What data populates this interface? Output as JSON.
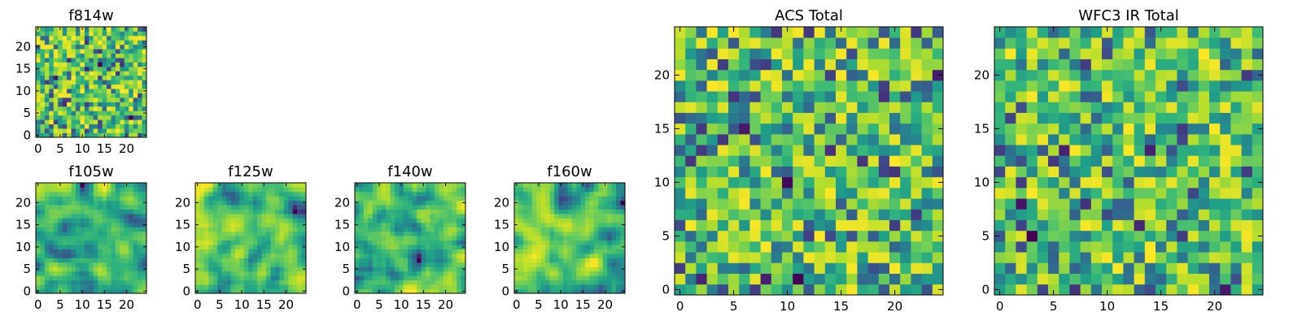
{
  "chart_data": [
    {
      "type": "heatmap",
      "title": "f814w",
      "grid_size": 25,
      "xticks": [
        0,
        5,
        10,
        15,
        20
      ],
      "yticks": [
        0,
        5,
        10,
        15,
        20
      ],
      "xlim": [
        -0.5,
        24.5
      ],
      "ylim": [
        -0.5,
        24.5
      ],
      "colormap": "viridis",
      "texture_seed": 11,
      "smoothing": 0
    },
    {
      "type": "heatmap",
      "title": "f105w",
      "grid_size": 25,
      "xticks": [
        0,
        5,
        10,
        15,
        20
      ],
      "yticks": [
        0,
        5,
        10,
        15,
        20
      ],
      "xlim": [
        -0.5,
        24.5
      ],
      "ylim": [
        -0.5,
        24.5
      ],
      "colormap": "viridis",
      "texture_seed": 23,
      "smoothing": 2
    },
    {
      "type": "heatmap",
      "title": "f125w",
      "grid_size": 25,
      "xticks": [
        0,
        5,
        10,
        15,
        20
      ],
      "yticks": [
        0,
        5,
        10,
        15,
        20
      ],
      "xlim": [
        -0.5,
        24.5
      ],
      "ylim": [
        -0.5,
        24.5
      ],
      "colormap": "viridis",
      "texture_seed": 37,
      "smoothing": 2
    },
    {
      "type": "heatmap",
      "title": "f140w",
      "grid_size": 25,
      "xticks": [
        0,
        5,
        10,
        15,
        20
      ],
      "yticks": [
        0,
        5,
        10,
        15,
        20
      ],
      "xlim": [
        -0.5,
        24.5
      ],
      "ylim": [
        -0.5,
        24.5
      ],
      "colormap": "viridis",
      "texture_seed": 41,
      "smoothing": 2
    },
    {
      "type": "heatmap",
      "title": "f160w",
      "grid_size": 25,
      "xticks": [
        0,
        5,
        10,
        15,
        20
      ],
      "yticks": [
        0,
        5,
        10,
        15,
        20
      ],
      "xlim": [
        -0.5,
        24.5
      ],
      "ylim": [
        -0.5,
        24.5
      ],
      "colormap": "viridis",
      "texture_seed": 53,
      "smoothing": 2
    },
    {
      "type": "heatmap",
      "title": "ACS Total",
      "grid_size": 25,
      "xticks": [
        0,
        5,
        10,
        15,
        20
      ],
      "yticks": [
        0,
        5,
        10,
        15,
        20
      ],
      "xlim": [
        -0.5,
        24.5
      ],
      "ylim": [
        -0.5,
        24.5
      ],
      "colormap": "viridis",
      "texture_seed": 67,
      "smoothing": 0
    },
    {
      "type": "heatmap",
      "title": "WFC3 IR Total",
      "grid_size": 25,
      "xticks": [
        0,
        5,
        10,
        15,
        20
      ],
      "yticks": [
        0,
        5,
        10,
        15,
        20
      ],
      "xlim": [
        -0.5,
        24.5
      ],
      "ylim": [
        -0.5,
        24.5
      ],
      "colormap": "viridis",
      "texture_seed": 79,
      "smoothing": 0
    }
  ]
}
